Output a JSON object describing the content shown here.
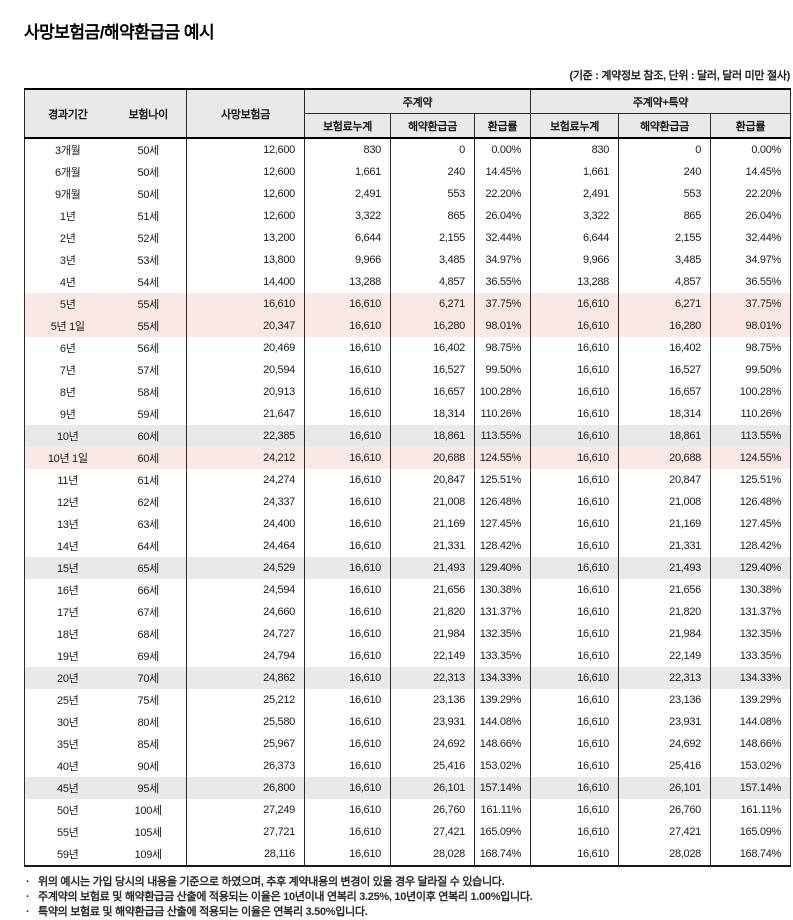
{
  "title": "사망보험금/해약환급금 예시",
  "unit_note": "(기준 : 계약정보 참조, 단위 : 달러, 달러 미만 절사)",
  "bullet_char": "·",
  "colors": {
    "header_bg": "#e9e9e9",
    "row_highlight_pink": "#f9e8e5",
    "row_highlight_gray": "#e9e9e9",
    "border_dark": "#000000",
    "text": "#1a1a1a"
  },
  "table": {
    "headers": {
      "elapsed_period": "경과기간",
      "insurance_age": "보험나이",
      "death_benefit": "사망보험금",
      "group_main": "주계약",
      "group_main_rider": "주계약+특약",
      "sub_premium_total": "보험료누계",
      "sub_surrender_value": "해약환급금",
      "sub_refund_rate": "환급률"
    },
    "rows": [
      {
        "period": "3개월",
        "age": "50세",
        "death": "12,600",
        "p1": "830",
        "s1": "0",
        "r1": "0.00%",
        "p2": "830",
        "s2": "0",
        "r2": "0.00%",
        "hl": ""
      },
      {
        "period": "6개월",
        "age": "50세",
        "death": "12,600",
        "p1": "1,661",
        "s1": "240",
        "r1": "14.45%",
        "p2": "1,661",
        "s2": "240",
        "r2": "14.45%",
        "hl": ""
      },
      {
        "period": "9개월",
        "age": "50세",
        "death": "12,600",
        "p1": "2,491",
        "s1": "553",
        "r1": "22.20%",
        "p2": "2,491",
        "s2": "553",
        "r2": "22.20%",
        "hl": ""
      },
      {
        "period": "1년",
        "age": "51세",
        "death": "12,600",
        "p1": "3,322",
        "s1": "865",
        "r1": "26.04%",
        "p2": "3,322",
        "s2": "865",
        "r2": "26.04%",
        "hl": ""
      },
      {
        "period": "2년",
        "age": "52세",
        "death": "13,200",
        "p1": "6,644",
        "s1": "2,155",
        "r1": "32.44%",
        "p2": "6,644",
        "s2": "2,155",
        "r2": "32.44%",
        "hl": ""
      },
      {
        "period": "3년",
        "age": "53세",
        "death": "13,800",
        "p1": "9,966",
        "s1": "3,485",
        "r1": "34.97%",
        "p2": "9,966",
        "s2": "3,485",
        "r2": "34.97%",
        "hl": ""
      },
      {
        "period": "4년",
        "age": "54세",
        "death": "14,400",
        "p1": "13,288",
        "s1": "4,857",
        "r1": "36.55%",
        "p2": "13,288",
        "s2": "4,857",
        "r2": "36.55%",
        "hl": ""
      },
      {
        "period": "5년",
        "age": "55세",
        "death": "16,610",
        "p1": "16,610",
        "s1": "6,271",
        "r1": "37.75%",
        "p2": "16,610",
        "s2": "6,271",
        "r2": "37.75%",
        "hl": "pink"
      },
      {
        "period": "5년 1일",
        "age": "55세",
        "death": "20,347",
        "p1": "16,610",
        "s1": "16,280",
        "r1": "98.01%",
        "p2": "16,610",
        "s2": "16,280",
        "r2": "98.01%",
        "hl": "pink"
      },
      {
        "period": "6년",
        "age": "56세",
        "death": "20,469",
        "p1": "16,610",
        "s1": "16,402",
        "r1": "98.75%",
        "p2": "16,610",
        "s2": "16,402",
        "r2": "98.75%",
        "hl": ""
      },
      {
        "period": "7년",
        "age": "57세",
        "death": "20,594",
        "p1": "16,610",
        "s1": "16,527",
        "r1": "99.50%",
        "p2": "16,610",
        "s2": "16,527",
        "r2": "99.50%",
        "hl": ""
      },
      {
        "period": "8년",
        "age": "58세",
        "death": "20,913",
        "p1": "16,610",
        "s1": "16,657",
        "r1": "100.28%",
        "p2": "16,610",
        "s2": "16,657",
        "r2": "100.28%",
        "hl": ""
      },
      {
        "period": "9년",
        "age": "59세",
        "death": "21,647",
        "p1": "16,610",
        "s1": "18,314",
        "r1": "110.26%",
        "p2": "16,610",
        "s2": "18,314",
        "r2": "110.26%",
        "hl": ""
      },
      {
        "period": "10년",
        "age": "60세",
        "death": "22,385",
        "p1": "16,610",
        "s1": "18,861",
        "r1": "113.55%",
        "p2": "16,610",
        "s2": "18,861",
        "r2": "113.55%",
        "hl": "gray"
      },
      {
        "period": "10년 1일",
        "age": "60세",
        "death": "24,212",
        "p1": "16,610",
        "s1": "20,688",
        "r1": "124.55%",
        "p2": "16,610",
        "s2": "20,688",
        "r2": "124.55%",
        "hl": "pink"
      },
      {
        "period": "11년",
        "age": "61세",
        "death": "24,274",
        "p1": "16,610",
        "s1": "20,847",
        "r1": "125.51%",
        "p2": "16,610",
        "s2": "20,847",
        "r2": "125.51%",
        "hl": ""
      },
      {
        "period": "12년",
        "age": "62세",
        "death": "24,337",
        "p1": "16,610",
        "s1": "21,008",
        "r1": "126.48%",
        "p2": "16,610",
        "s2": "21,008",
        "r2": "126.48%",
        "hl": ""
      },
      {
        "period": "13년",
        "age": "63세",
        "death": "24,400",
        "p1": "16,610",
        "s1": "21,169",
        "r1": "127.45%",
        "p2": "16,610",
        "s2": "21,169",
        "r2": "127.45%",
        "hl": ""
      },
      {
        "period": "14년",
        "age": "64세",
        "death": "24,464",
        "p1": "16,610",
        "s1": "21,331",
        "r1": "128.42%",
        "p2": "16,610",
        "s2": "21,331",
        "r2": "128.42%",
        "hl": ""
      },
      {
        "period": "15년",
        "age": "65세",
        "death": "24,529",
        "p1": "16,610",
        "s1": "21,493",
        "r1": "129.40%",
        "p2": "16,610",
        "s2": "21,493",
        "r2": "129.40%",
        "hl": "gray"
      },
      {
        "period": "16년",
        "age": "66세",
        "death": "24,594",
        "p1": "16,610",
        "s1": "21,656",
        "r1": "130.38%",
        "p2": "16,610",
        "s2": "21,656",
        "r2": "130.38%",
        "hl": ""
      },
      {
        "period": "17년",
        "age": "67세",
        "death": "24,660",
        "p1": "16,610",
        "s1": "21,820",
        "r1": "131.37%",
        "p2": "16,610",
        "s2": "21,820",
        "r2": "131.37%",
        "hl": ""
      },
      {
        "period": "18년",
        "age": "68세",
        "death": "24,727",
        "p1": "16,610",
        "s1": "21,984",
        "r1": "132.35%",
        "p2": "16,610",
        "s2": "21,984",
        "r2": "132.35%",
        "hl": ""
      },
      {
        "period": "19년",
        "age": "69세",
        "death": "24,794",
        "p1": "16,610",
        "s1": "22,149",
        "r1": "133.35%",
        "p2": "16,610",
        "s2": "22,149",
        "r2": "133.35%",
        "hl": ""
      },
      {
        "period": "20년",
        "age": "70세",
        "death": "24,862",
        "p1": "16,610",
        "s1": "22,313",
        "r1": "134.33%",
        "p2": "16,610",
        "s2": "22,313",
        "r2": "134.33%",
        "hl": "gray"
      },
      {
        "period": "25년",
        "age": "75세",
        "death": "25,212",
        "p1": "16,610",
        "s1": "23,136",
        "r1": "139.29%",
        "p2": "16,610",
        "s2": "23,136",
        "r2": "139.29%",
        "hl": ""
      },
      {
        "period": "30년",
        "age": "80세",
        "death": "25,580",
        "p1": "16,610",
        "s1": "23,931",
        "r1": "144.08%",
        "p2": "16,610",
        "s2": "23,931",
        "r2": "144.08%",
        "hl": ""
      },
      {
        "period": "35년",
        "age": "85세",
        "death": "25,967",
        "p1": "16,610",
        "s1": "24,692",
        "r1": "148.66%",
        "p2": "16,610",
        "s2": "24,692",
        "r2": "148.66%",
        "hl": ""
      },
      {
        "period": "40년",
        "age": "90세",
        "death": "26,373",
        "p1": "16,610",
        "s1": "25,416",
        "r1": "153.02%",
        "p2": "16,610",
        "s2": "25,416",
        "r2": "153.02%",
        "hl": ""
      },
      {
        "period": "45년",
        "age": "95세",
        "death": "26,800",
        "p1": "16,610",
        "s1": "26,101",
        "r1": "157.14%",
        "p2": "16,610",
        "s2": "26,101",
        "r2": "157.14%",
        "hl": "gray"
      },
      {
        "period": "50년",
        "age": "100세",
        "death": "27,249",
        "p1": "16,610",
        "s1": "26,760",
        "r1": "161.11%",
        "p2": "16,610",
        "s2": "26,760",
        "r2": "161.11%",
        "hl": ""
      },
      {
        "period": "55년",
        "age": "105세",
        "death": "27,721",
        "p1": "16,610",
        "s1": "27,421",
        "r1": "165.09%",
        "p2": "16,610",
        "s2": "27,421",
        "r2": "165.09%",
        "hl": ""
      },
      {
        "period": "59년",
        "age": "109세",
        "death": "28,116",
        "p1": "16,610",
        "s1": "28,028",
        "r1": "168.74%",
        "p2": "16,610",
        "s2": "28,028",
        "r2": "168.74%",
        "hl": ""
      }
    ]
  },
  "footnotes": [
    "위의 예시는 가입 당시의 내용을 기준으로 하였으며, 추후 계약내용의 변경이 있을 경우 달라질 수 있습니다.",
    "주계약의 보험료 및 해약환급금 산출에 적용되는 이율은 10년이내 연복리 3.25%, 10년이후 연복리 1.00%입니다.",
    "특약의 보험료 및 해약환급금 산출에 적용되는 이율은 연복리 3.50%입니다."
  ]
}
